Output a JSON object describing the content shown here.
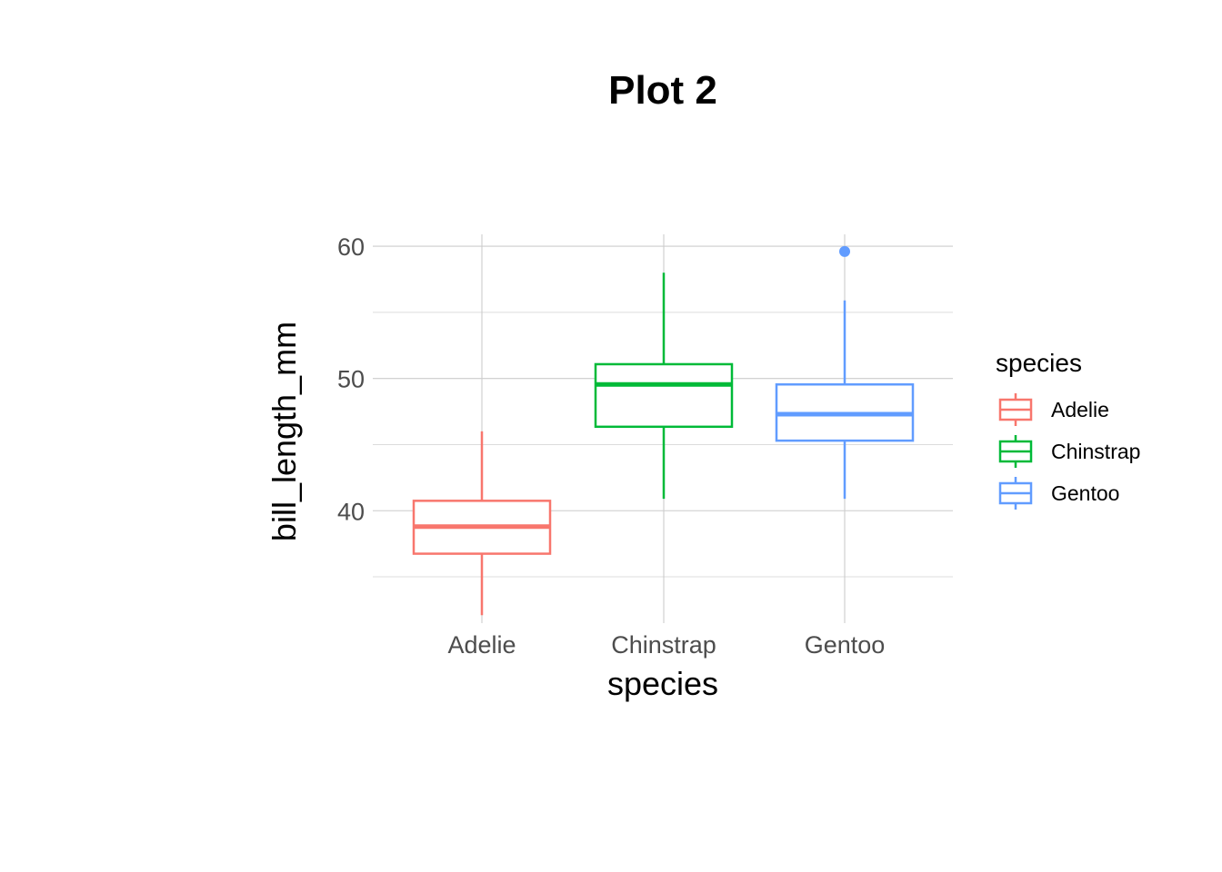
{
  "chart_data": {
    "type": "boxplot",
    "title": "Plot 2",
    "xlabel": "species",
    "ylabel": "bill_length_mm",
    "categories": [
      "Adelie",
      "Chinstrap",
      "Gentoo"
    ],
    "ylim": [
      31.5,
      60.9
    ],
    "y_ticks": [
      40,
      50,
      60
    ],
    "y_minor_ticks": [
      35,
      45,
      55
    ],
    "grid": true,
    "series": [
      {
        "category": "Adelie",
        "min": 32.1,
        "q1": 36.75,
        "median": 38.8,
        "q3": 40.75,
        "max": 46.0,
        "outliers": []
      },
      {
        "category": "Chinstrap",
        "min": 40.9,
        "q1": 46.35,
        "median": 49.55,
        "q3": 51.08,
        "max": 58.0,
        "outliers": []
      },
      {
        "category": "Gentoo",
        "min": 40.9,
        "q1": 45.3,
        "median": 47.3,
        "q3": 49.55,
        "max": 55.9,
        "outliers": [
          59.6
        ]
      }
    ],
    "colors": {
      "Adelie": "#F8766D",
      "Chinstrap": "#00BA38",
      "Gentoo": "#619CFF"
    },
    "legend": {
      "title": "species",
      "placement": "right",
      "entries": [
        "Adelie",
        "Chinstrap",
        "Gentoo"
      ]
    }
  }
}
